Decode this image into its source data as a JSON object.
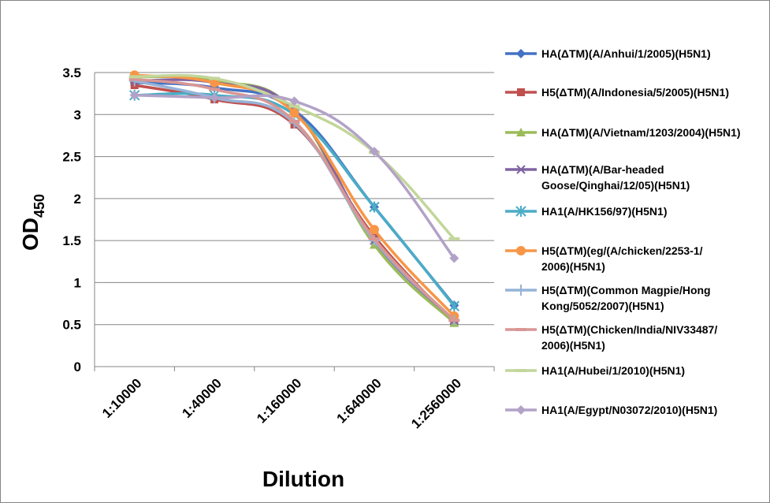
{
  "chart_data": {
    "type": "line",
    "title": "",
    "xlabel": "Dilution",
    "ylabel": "OD",
    "ylabel_sub": "450",
    "ylim": [
      0,
      3.5
    ],
    "yticks": [
      "0",
      "0.5",
      "1",
      "1.5",
      "2",
      "2.5",
      "3",
      "3.5"
    ],
    "grid": true,
    "legend_position": "right",
    "categories": [
      "1:10000",
      "1:40000",
      "1:160000",
      "1:640000",
      "1:2560000"
    ],
    "series": [
      {
        "name": "HA(ΔTM)(A/Anhui/1/2005)(H5N1)",
        "color": "#4472C4",
        "marker": "diamond",
        "values": [
          3.38,
          3.32,
          3.05,
          1.9,
          0.73
        ]
      },
      {
        "name": "H5(ΔTM)(A/Indonesia/5/2005)(H5N1)",
        "color": "#C0504D",
        "marker": "square",
        "values": [
          3.35,
          3.18,
          2.88,
          1.55,
          0.52
        ]
      },
      {
        "name": "HA(ΔTM)(A/Vietnam/1203/2004)(H5N1)",
        "color": "#9BBB59",
        "marker": "triangle",
        "values": [
          3.45,
          3.4,
          3.05,
          1.45,
          0.52
        ]
      },
      {
        "name": "HA(ΔTM)(A/Bar-headed Goose/Qinghai/12/05)(H5N1)",
        "color": "#8064A2",
        "marker": "x",
        "values": [
          3.4,
          3.38,
          3.05,
          1.5,
          0.55
        ]
      },
      {
        "name": "HA1(A/HK156/97)(H5N1)",
        "color": "#4BACC6",
        "marker": "star",
        "values": [
          3.23,
          3.23,
          3.0,
          1.9,
          0.72
        ]
      },
      {
        "name": "H5(ΔTM)(eg/(A/chicken/2253-1/2006)(H5N1)",
        "color": "#F79646",
        "marker": "circle",
        "values": [
          3.47,
          3.38,
          3.02,
          1.63,
          0.6
        ]
      },
      {
        "name": "H5(ΔTM)(Common Magpie/Hong Kong/5052/2007)(H5N1)",
        "color": "#95B3D7",
        "marker": "plus",
        "values": [
          3.4,
          3.2,
          2.9,
          1.5,
          0.55
        ]
      },
      {
        "name": "H5(ΔTM)(Chicken/India/NIV33487/2006)(H5N1)",
        "color": "#D99694",
        "marker": "dash",
        "values": [
          3.42,
          3.3,
          2.92,
          1.52,
          0.55
        ]
      },
      {
        "name": "HA1(A/Hubei/1/2010)(H5N1)",
        "color": "#C3D69B",
        "marker": "dash",
        "values": [
          3.45,
          3.43,
          3.1,
          2.55,
          1.52
        ]
      },
      {
        "name": "HA1(A/Egypt/N03072/2010)(H5N1)",
        "color": "#B3A2C7",
        "marker": "diamond",
        "values": [
          3.23,
          3.2,
          3.16,
          2.56,
          1.29
        ]
      }
    ]
  }
}
